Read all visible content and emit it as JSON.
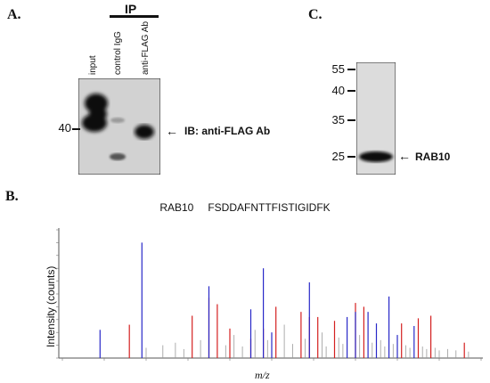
{
  "panel_a": {
    "letter": "A.",
    "ip_label": "IP",
    "lanes": [
      "input",
      "control IgG",
      "anti-FLAG Ab"
    ],
    "marker": "40",
    "annotation": "IB: anti-FLAG  Ab"
  },
  "panel_c": {
    "letter": "C.",
    "markers": [
      "55",
      "40",
      "35",
      "25"
    ],
    "annotation": "RAB10"
  },
  "panel_b": {
    "letter": "B.",
    "protein": "RAB10",
    "peptide": "FSDDAFNTTFISTIGIDFK",
    "ylabel": "Intensity (counts)",
    "xlabel": "m/z"
  },
  "colors": {
    "red": "#d42020",
    "blue": "#2828c8",
    "gray": "#9a9a9a"
  },
  "chart_data": {
    "type": "bar",
    "title": "RAB10    FSDDAFNTTFISTIGIDFK",
    "xlabel": "m/z",
    "ylabel": "Intensity (counts)",
    "xlim": [
      0,
      100
    ],
    "ylim": [
      0,
      100
    ],
    "grid": false,
    "series": [
      {
        "color": "red",
        "peaks": [
          [
            16,
            26
          ],
          [
            31,
            33
          ],
          [
            35,
            47
          ],
          [
            37,
            42
          ],
          [
            40,
            23
          ],
          [
            48,
            23
          ],
          [
            51,
            40
          ],
          [
            57,
            36
          ],
          [
            59,
            32
          ],
          [
            61,
            32
          ],
          [
            65,
            29
          ],
          [
            70,
            43
          ],
          [
            72,
            40
          ],
          [
            81,
            27
          ],
          [
            85,
            31
          ],
          [
            88,
            33
          ],
          [
            96,
            12
          ],
          [
            45,
            15
          ]
        ]
      },
      {
        "color": "blue",
        "peaks": [
          [
            9,
            22
          ],
          [
            19,
            90
          ],
          [
            35,
            56
          ],
          [
            45,
            38
          ],
          [
            48,
            70
          ],
          [
            59,
            59
          ],
          [
            70,
            36
          ],
          [
            73,
            36
          ],
          [
            75,
            27
          ],
          [
            78,
            48
          ],
          [
            80,
            18
          ],
          [
            84,
            25
          ],
          [
            50,
            20
          ],
          [
            68,
            32
          ]
        ]
      },
      {
        "color": "gray",
        "peaks": [
          [
            20,
            8
          ],
          [
            24,
            10
          ],
          [
            27,
            12
          ],
          [
            29,
            7
          ],
          [
            33,
            14
          ],
          [
            39,
            10
          ],
          [
            41,
            18
          ],
          [
            43,
            9
          ],
          [
            46,
            22
          ],
          [
            49,
            14
          ],
          [
            53,
            26
          ],
          [
            55,
            11
          ],
          [
            58,
            15
          ],
          [
            62,
            20
          ],
          [
            63,
            9
          ],
          [
            66,
            16
          ],
          [
            67,
            11
          ],
          [
            71,
            18
          ],
          [
            74,
            12
          ],
          [
            76,
            14
          ],
          [
            77,
            9
          ],
          [
            79,
            11
          ],
          [
            82,
            10
          ],
          [
            83,
            8
          ],
          [
            86,
            9
          ],
          [
            87,
            7
          ],
          [
            89,
            8
          ],
          [
            90,
            6
          ],
          [
            92,
            7
          ],
          [
            94,
            6
          ],
          [
            97,
            5
          ]
        ]
      }
    ]
  }
}
